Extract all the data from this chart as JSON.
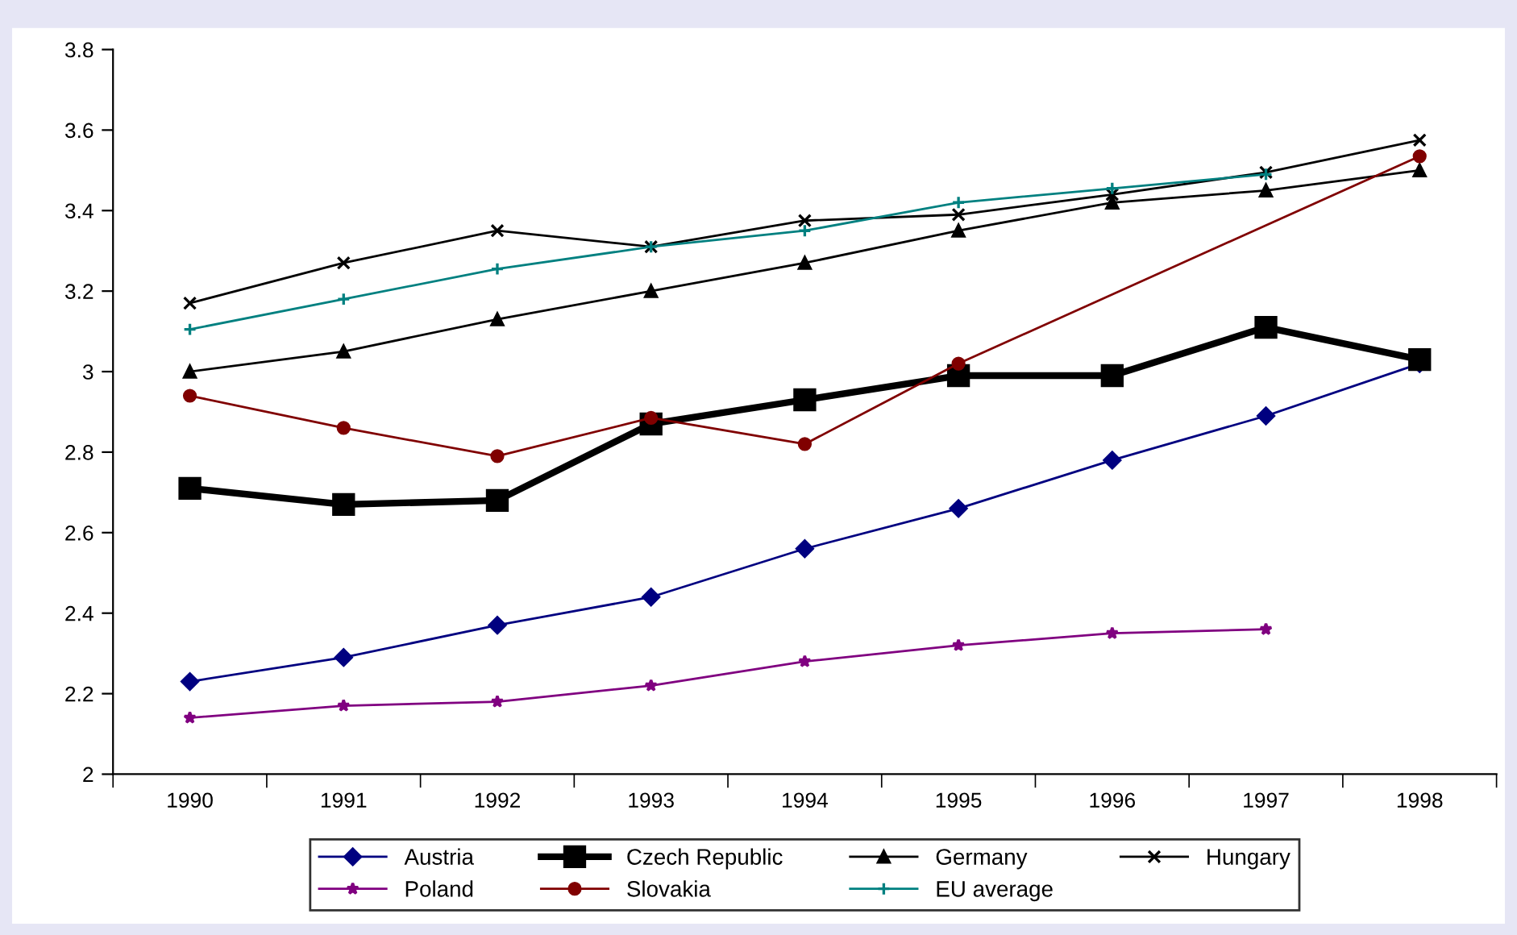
{
  "chart_data": {
    "type": "line",
    "categories": [
      "1990",
      "1991",
      "1992",
      "1993",
      "1994",
      "1995",
      "1996",
      "1997",
      "1998"
    ],
    "ylim": [
      2,
      3.8
    ],
    "yticks": [
      2,
      2.2,
      2.4,
      2.6,
      2.8,
      3,
      3.2,
      3.4,
      3.6,
      3.8
    ],
    "grid": false,
    "legend": "bottom",
    "series": [
      {
        "name": "Austria",
        "color": "#000080",
        "marker": "diamond",
        "values": [
          2.23,
          2.29,
          2.37,
          2.44,
          2.56,
          2.66,
          2.78,
          2.89,
          3.02
        ]
      },
      {
        "name": "Czech Republic",
        "color": "#000000",
        "marker": "square",
        "values": [
          2.71,
          2.67,
          2.68,
          2.87,
          2.93,
          2.99,
          2.99,
          3.11,
          3.03
        ]
      },
      {
        "name": "Germany",
        "color": "#000000",
        "marker": "triangle",
        "values": [
          3.0,
          3.05,
          3.13,
          3.2,
          3.27,
          3.35,
          3.42,
          3.45,
          3.5
        ]
      },
      {
        "name": "Hungary",
        "color": "#000000",
        "marker": "cross",
        "values": [
          3.17,
          3.27,
          3.35,
          3.31,
          3.375,
          3.39,
          3.44,
          3.495,
          3.575
        ]
      },
      {
        "name": "Poland",
        "color": "#800080",
        "marker": "star",
        "values": [
          2.14,
          2.17,
          2.18,
          2.22,
          2.28,
          2.32,
          2.35,
          2.36,
          null
        ]
      },
      {
        "name": "Slovakia",
        "color": "#800000",
        "marker": "circle",
        "values": [
          2.94,
          2.86,
          2.79,
          2.885,
          2.82,
          3.02,
          null,
          null,
          3.535
        ]
      },
      {
        "name": "EU average",
        "color": "#008080",
        "marker": "plus",
        "values": [
          3.105,
          3.18,
          3.255,
          3.31,
          3.35,
          3.42,
          3.455,
          3.49,
          null
        ]
      }
    ]
  }
}
